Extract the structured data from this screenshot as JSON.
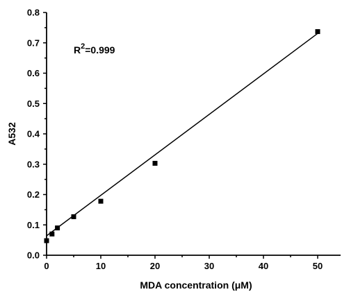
{
  "chart_data": {
    "type": "scatter",
    "xlabel": "MDA concentration (μM)",
    "ylabel": "A532",
    "xlim": [
      0,
      55
    ],
    "ylim": [
      0.0,
      0.8
    ],
    "x_ticks": [
      0,
      10,
      20,
      30,
      40,
      50
    ],
    "y_ticks": [
      0.0,
      0.1,
      0.2,
      0.3,
      0.4,
      0.5,
      0.6,
      0.7,
      0.8
    ],
    "x_tick_labels": [
      "0",
      "10",
      "20",
      "30",
      "40",
      "50"
    ],
    "y_tick_labels": [
      "0.0",
      "0.1",
      "0.2",
      "0.3",
      "0.4",
      "0.5",
      "0.6",
      "0.7",
      "0.8"
    ],
    "grid": false,
    "series": [
      {
        "marker": "square",
        "x": [
          0,
          1,
          2,
          5,
          10,
          20,
          50
        ],
        "y": [
          0.048,
          0.07,
          0.09,
          0.127,
          0.178,
          0.303,
          0.737
        ]
      }
    ],
    "fit_line": {
      "x": [
        0,
        50
      ],
      "y": [
        0.064,
        0.731
      ]
    },
    "annotation": {
      "base": "R",
      "sup": "2",
      "rest": "=0.999"
    }
  }
}
